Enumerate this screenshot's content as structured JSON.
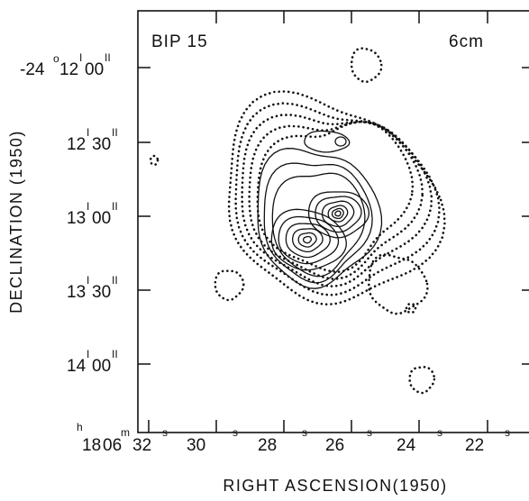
{
  "chart_data": {
    "type": "contour",
    "source_name": "BIP 15",
    "wavelength": "6cm",
    "xlabel": "RIGHT ASCENSION(1950)",
    "ylabel": "DECLINATION (1950)",
    "x_ticks": [
      {
        "ra_s": 32,
        "label": "32"
      },
      {
        "ra_s": 30,
        "label": "30"
      },
      {
        "ra_s": 28,
        "label": "28"
      },
      {
        "ra_s": 26,
        "label": "26"
      },
      {
        "ra_s": 24,
        "label": "24"
      },
      {
        "ra_s": 22,
        "label": "22"
      }
    ],
    "x_prefix": {
      "h": "18",
      "m": "06"
    },
    "y_ticks": [
      {
        "dec_arcsec": 0,
        "deg": "-24",
        "min": "12",
        "sec": "00"
      },
      {
        "dec_arcsec": 30,
        "deg": "",
        "min": "12",
        "sec": "30"
      },
      {
        "dec_arcsec": 60,
        "deg": "",
        "min": "13",
        "sec": "00"
      },
      {
        "dec_arcsec": 90,
        "deg": "",
        "min": "13",
        "sec": "30"
      },
      {
        "dec_arcsec": 120,
        "deg": "",
        "min": "14",
        "sec": "00"
      }
    ],
    "x_range_ra_s": [
      33.2,
      21.2
    ],
    "y_range_dec_arcsec_below_-24d12m": [
      -17,
      149
    ],
    "peaks": [
      {
        "name": "peak-east",
        "ra_s": 27.4,
        "dec_offset_arcsec": 73
      },
      {
        "name": "peak-west",
        "ra_s": 26.1,
        "dec_offset_arcsec": 59
      }
    ],
    "positive_contours": "solid",
    "negative_or_low_contours": "dotted",
    "grid": false
  }
}
